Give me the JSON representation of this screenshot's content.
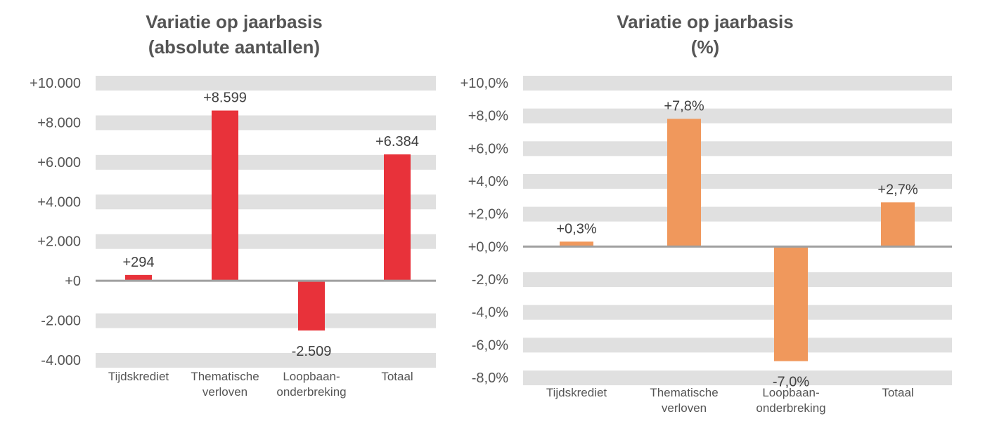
{
  "chart_data": [
    {
      "type": "bar",
      "title": [
        "Variatie op jaarbasis",
        "(absolute aantallen)"
      ],
      "categories": [
        [
          "Tijdskrediet"
        ],
        [
          "Thematische",
          "verloven"
        ],
        [
          "Loopbaan-",
          "onderbreking"
        ],
        [
          "Totaal"
        ]
      ],
      "values": [
        294,
        8599,
        -2509,
        6384
      ],
      "data_labels": [
        "+294",
        "+8.599",
        "-2.509",
        "+6.384"
      ],
      "ylim": [
        -4000,
        10000
      ],
      "yticks": [
        10000,
        8000,
        6000,
        4000,
        2000,
        0,
        -2000,
        -4000
      ],
      "ytick_labels": [
        "+10.000",
        "+8.000",
        "+6.000",
        "+4.000",
        "+2.000",
        "+0",
        "-2.000",
        "-4.000"
      ],
      "grid": "banded",
      "color": "#e8323a"
    },
    {
      "type": "bar",
      "title": [
        "Variatie op jaarbasis",
        "(%)"
      ],
      "categories": [
        [
          "Tijdskrediet"
        ],
        [
          "Thematische",
          "verloven"
        ],
        [
          "Loopbaan-",
          "onderbreking"
        ],
        [
          "Totaal"
        ]
      ],
      "values": [
        0.3,
        7.8,
        -7.0,
        2.7
      ],
      "data_labels": [
        "+0,3%",
        "+7,8%",
        "-7,0%",
        "+2,7%"
      ],
      "ylim": [
        -8,
        10
      ],
      "yticks": [
        10,
        8,
        6,
        4,
        2,
        0,
        -2,
        -4,
        -6,
        -8
      ],
      "ytick_labels": [
        "+10,0%",
        "+8,0%",
        "+6,0%",
        "+4,0%",
        "+2,0%",
        "+0,0%",
        "-2,0%",
        "-4,0%",
        "-6,0%",
        "-8,0%"
      ],
      "grid": "banded",
      "color": "#f0985c"
    }
  ]
}
